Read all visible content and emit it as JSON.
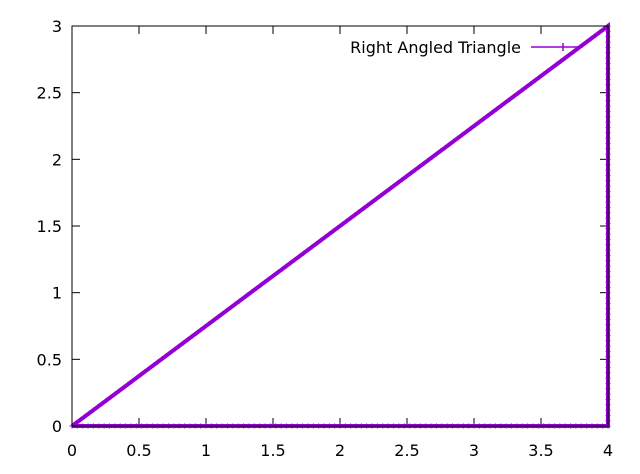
{
  "chart_data": {
    "type": "line",
    "title": "",
    "xlabel": "",
    "ylabel": "",
    "xlim": [
      0,
      4
    ],
    "ylim": [
      0,
      3
    ],
    "xticks": [
      "0",
      "0.5",
      "1",
      "1.5",
      "2",
      "2.5",
      "3",
      "3.5",
      "4"
    ],
    "yticks": [
      "0",
      "0.5",
      "1",
      "1.5",
      "2",
      "2.5",
      "3"
    ],
    "grid": false,
    "legend_position": "top-right",
    "series": [
      {
        "name": "Right Angled Triangle",
        "color": "#9400d3",
        "x": [
          0,
          4,
          4,
          0
        ],
        "y": [
          0,
          0,
          3,
          0
        ]
      }
    ]
  }
}
